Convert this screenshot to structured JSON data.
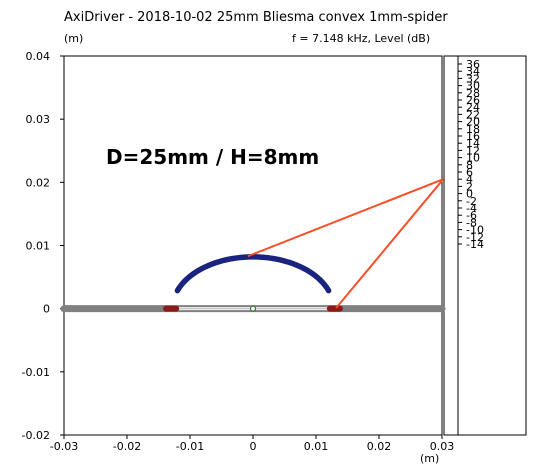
{
  "header": {
    "title": "AxiDriver - 2018-10-02 25mm Bliesma convex 1mm-spider",
    "units_label": "(m)",
    "info": "f = 7.148 kHz, Level  (dB)"
  },
  "annotation": "D=25mm / H=8mm",
  "colors": {
    "baffle": "#808080",
    "dome": "#1a237e",
    "surround": "#8b1a1a",
    "ray": "#f4502a",
    "axis_line": "#c8c8c8",
    "origin": "#2e7d32"
  },
  "chart_data": {
    "type": "scatter",
    "title": "AxiDriver - 2018-10-02 25mm Bliesma convex 1mm-spider",
    "xlabel": "(m)",
    "ylabel": "(m)",
    "xlim": [
      -0.03,
      0.03
    ],
    "ylim": [
      -0.02,
      0.04
    ],
    "x_ticks": [
      "-0.03",
      "-0.02",
      "-0.01",
      "0",
      "0.01",
      "0.02",
      "0.03"
    ],
    "y_ticks": [
      "0.04",
      "0.03",
      "0.02",
      "0.01",
      "0",
      "-0.01",
      "-0.02"
    ],
    "grid": false,
    "baffle": {
      "x": [
        -0.03,
        0.03
      ],
      "y": 0
    },
    "axis_line": {
      "x": [
        -0.0135,
        0.0135
      ],
      "y": 0
    },
    "dome": {
      "center": [
        0,
        0
      ],
      "x_start": -0.012,
      "x_end": 0.012,
      "apex_height": 0.0082,
      "x_span_for_arc": 0.0128
    },
    "surround_left": {
      "x": [
        -0.0138,
        -0.0122
      ],
      "y": 0
    },
    "surround_right": {
      "x": [
        0.0122,
        0.0138
      ],
      "y": 0
    },
    "rays": [
      {
        "from": [
          -0.0008,
          0.0083
        ],
        "to": [
          0.0302,
          0.0205
        ]
      },
      {
        "from": [
          0.0132,
          0.0001
        ],
        "to": [
          0.0302,
          0.0205
        ]
      }
    ],
    "origin_marker": [
      0,
      0
    ],
    "colorbar": {
      "label": "Level  (dB)",
      "ticks": [
        "36",
        "34",
        "32",
        "30",
        "28",
        "26",
        "24",
        "22",
        "20",
        "18",
        "16",
        "14",
        "12",
        "10",
        "8",
        "6",
        "4",
        "2",
        "0",
        "-2",
        "-4",
        "-6",
        "-8",
        "-10",
        "-12",
        "-14"
      ]
    }
  }
}
